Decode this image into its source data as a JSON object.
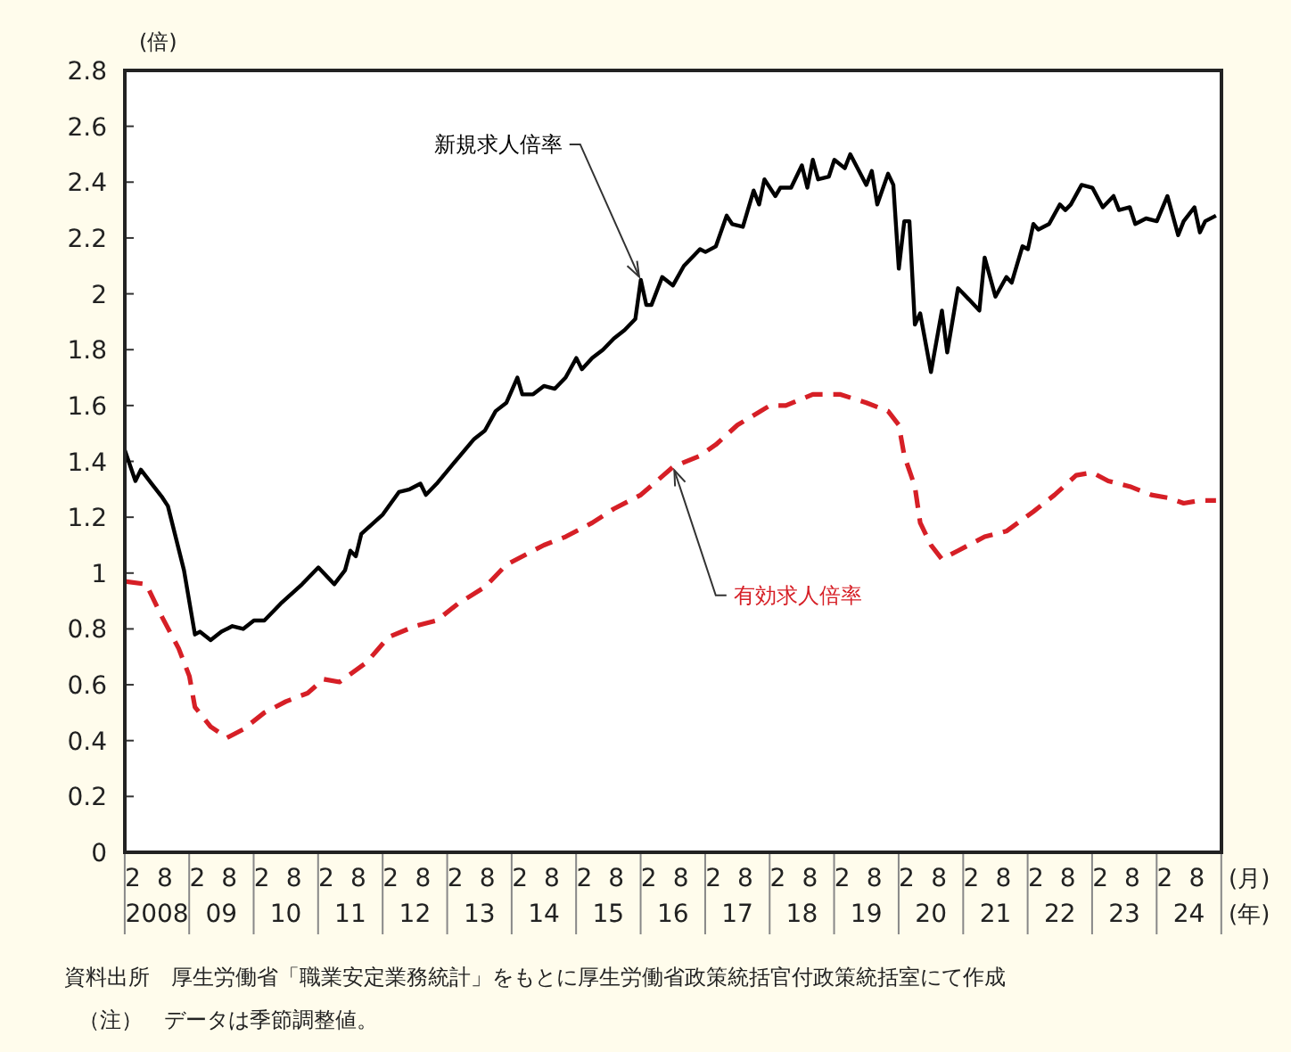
{
  "chart_data": {
    "type": "line",
    "ylabel": "(倍)",
    "xlabel": "(月)",
    "annotations": [
      "(年)",
      "資料出所　厚生労働省「職業安定業務統計」をもとに厚生労働省政策統括官付政策統括室にて作成",
      "（注）　データは季節調整値。"
    ],
    "xlim": [
      "2008-01",
      "2025-01"
    ],
    "xticks": [
      {
        "value": "2008-02-15",
        "label": "2"
      },
      {
        "value": "2008-08-15",
        "label": "8"
      },
      {
        "value": "2009-02-15",
        "label": "2"
      },
      {
        "value": "2009-08-15",
        "label": "8"
      },
      {
        "value": "2010-02-15",
        "label": "2"
      },
      {
        "value": "2010-08-15",
        "label": "8"
      },
      {
        "value": "2011-02-15",
        "label": "2"
      },
      {
        "value": "2011-08-15",
        "label": "8"
      },
      {
        "value": "2012-02-15",
        "label": "2"
      },
      {
        "value": "2012-08-15",
        "label": "8"
      },
      {
        "value": "2013-02-15",
        "label": "2"
      },
      {
        "value": "2013-08-15",
        "label": "8"
      },
      {
        "value": "2014-02-15",
        "label": "2"
      },
      {
        "value": "2014-08-15",
        "label": "8"
      },
      {
        "value": "2015-02-15",
        "label": "2"
      },
      {
        "value": "2015-08-15",
        "label": "8"
      },
      {
        "value": "2016-02-15",
        "label": "2"
      },
      {
        "value": "2016-08-15",
        "label": "8"
      },
      {
        "value": "2017-02-15",
        "label": "2"
      },
      {
        "value": "2017-08-15",
        "label": "8"
      },
      {
        "value": "2018-02-15",
        "label": "2"
      },
      {
        "value": "2018-08-15",
        "label": "8"
      },
      {
        "value": "2019-02-15",
        "label": "2"
      },
      {
        "value": "2019-08-15",
        "label": "8"
      },
      {
        "value": "2020-02-15",
        "label": "2"
      },
      {
        "value": "2020-08-15",
        "label": "8"
      },
      {
        "value": "2021-02-15",
        "label": "2"
      },
      {
        "value": "2021-08-15",
        "label": "8"
      },
      {
        "value": "2022-02-15",
        "label": "2"
      },
      {
        "value": "2022-08-15",
        "label": "8"
      },
      {
        "value": "2023-02-15",
        "label": "2"
      },
      {
        "value": "2023-08-15",
        "label": "8"
      },
      {
        "value": "2024-02-15",
        "label": "2"
      },
      {
        "value": "2024-08-15",
        "label": "8"
      }
    ],
    "x2lim": [
      "2008-01",
      "2025-01"
    ],
    "x2ticks": [
      {
        "value": "2008-07",
        "label": "2008"
      },
      {
        "value": "2009-07",
        "label": "09"
      },
      {
        "value": "2010-07",
        "label": "10"
      },
      {
        "value": "2011-07",
        "label": "11"
      },
      {
        "value": "2012-07",
        "label": "12"
      },
      {
        "value": "2013-07",
        "label": "13"
      },
      {
        "value": "2014-07",
        "label": "14"
      },
      {
        "value": "2015-07",
        "label": "15"
      },
      {
        "value": "2016-07",
        "label": "16"
      },
      {
        "value": "2017-07",
        "label": "17"
      },
      {
        "value": "2018-07",
        "label": "18"
      },
      {
        "value": "2019-07",
        "label": "19"
      },
      {
        "value": "2020-07",
        "label": "20"
      },
      {
        "value": "2021-07",
        "label": "21"
      },
      {
        "value": "2022-07",
        "label": "22"
      },
      {
        "value": "2023-07",
        "label": "23"
      },
      {
        "value": "2024-07",
        "label": "24"
      }
    ],
    "ylim": [
      0,
      2.8
    ],
    "yticks": [
      0,
      0.2,
      0.4,
      0.6,
      0.8,
      1,
      1.2,
      1.4,
      1.6,
      1.8,
      2,
      2.2,
      2.4,
      2.6,
      2.8
    ],
    "series": [
      {
        "name": "新規求人倍率",
        "color": "#000000",
        "line_style": "solid",
        "x": [
          "2008-01",
          "2008-03",
          "2008-04",
          "2008-06",
          "2008-08",
          "2008-09",
          "2008-12",
          "2009-02",
          "2009-03",
          "2009-05",
          "2009-07",
          "2009-09",
          "2009-11",
          "2010-01",
          "2010-03",
          "2010-06",
          "2010-10",
          "2011-01",
          "2011-04",
          "2011-06",
          "2011-07",
          "2011-08",
          "2011-09",
          "2012-01",
          "2012-04",
          "2012-06",
          "2012-08",
          "2012-09",
          "2012-11",
          "2013-02",
          "2013-06",
          "2013-08",
          "2013-10",
          "2013-12",
          "2014-02",
          "2014-03",
          "2014-05",
          "2014-07",
          "2014-09",
          "2014-11",
          "2015-01",
          "2015-02",
          "2015-04",
          "2015-06",
          "2015-08",
          "2015-10",
          "2015-12",
          "2016-01",
          "2016-02",
          "2016-03",
          "2016-05",
          "2016-07",
          "2016-09",
          "2016-11",
          "2016-12",
          "2017-01",
          "2017-03",
          "2017-05",
          "2017-06",
          "2017-08",
          "2017-10",
          "2017-11",
          "2017-12",
          "2018-02",
          "2018-03",
          "2018-05",
          "2018-07",
          "2018-08",
          "2018-09",
          "2018-10",
          "2018-12",
          "2019-01",
          "2019-03",
          "2019-04",
          "2019-07",
          "2019-08",
          "2019-09",
          "2019-11",
          "2019-12",
          "2020-01",
          "2020-02",
          "2020-03",
          "2020-04",
          "2020-05",
          "2020-07",
          "2020-09",
          "2020-10",
          "2020-12",
          "2021-01",
          "2021-02",
          "2021-04",
          "2021-05",
          "2021-07",
          "2021-09",
          "2021-10",
          "2021-12",
          "2022-01",
          "2022-02",
          "2022-03",
          "2022-05",
          "2022-07",
          "2022-08",
          "2022-09",
          "2022-11",
          "2023-01",
          "2023-03",
          "2023-05",
          "2023-06",
          "2023-08",
          "2023-09",
          "2023-11",
          "2024-01",
          "2024-03",
          "2024-05",
          "2024-06",
          "2024-08",
          "2024-09",
          "2024-10",
          "2024-12"
        ],
        "values": [
          1.44,
          1.33,
          1.37,
          1.32,
          1.27,
          1.24,
          1.01,
          0.78,
          0.79,
          0.76,
          0.79,
          0.81,
          0.8,
          0.83,
          0.83,
          0.89,
          0.96,
          1.02,
          0.96,
          1.01,
          1.08,
          1.06,
          1.14,
          1.21,
          1.29,
          1.3,
          1.32,
          1.28,
          1.32,
          1.39,
          1.48,
          1.51,
          1.58,
          1.61,
          1.7,
          1.64,
          1.64,
          1.67,
          1.66,
          1.7,
          1.77,
          1.73,
          1.77,
          1.8,
          1.84,
          1.87,
          1.91,
          2.05,
          1.96,
          1.96,
          2.06,
          2.03,
          2.1,
          2.14,
          2.16,
          2.15,
          2.17,
          2.28,
          2.25,
          2.24,
          2.37,
          2.32,
          2.41,
          2.35,
          2.38,
          2.38,
          2.46,
          2.38,
          2.48,
          2.41,
          2.42,
          2.48,
          2.45,
          2.5,
          2.39,
          2.44,
          2.32,
          2.43,
          2.39,
          2.09,
          2.26,
          2.26,
          1.89,
          1.93,
          1.72,
          1.94,
          1.79,
          2.02,
          2.0,
          1.98,
          1.94,
          2.13,
          1.99,
          2.06,
          2.04,
          2.17,
          2.16,
          2.25,
          2.23,
          2.25,
          2.32,
          2.3,
          2.32,
          2.39,
          2.38,
          2.31,
          2.35,
          2.3,
          2.31,
          2.25,
          2.27,
          2.26,
          2.35,
          2.21,
          2.26,
          2.31,
          2.22,
          2.26,
          2.28
        ]
      },
      {
        "name": "有効求人倍率",
        "color": "#d61f26",
        "line_style": "dashed",
        "x": [
          "2008-01",
          "2008-05",
          "2008-08",
          "2008-11",
          "2009-01",
          "2009-02",
          "2009-05",
          "2009-08",
          "2009-11",
          "2010-03",
          "2010-07",
          "2010-11",
          "2011-02",
          "2011-05",
          "2011-10",
          "2012-02",
          "2012-07",
          "2012-11",
          "2013-03",
          "2013-08",
          "2013-12",
          "2014-04",
          "2014-07",
          "2014-11",
          "2015-04",
          "2015-08",
          "2016-01",
          "2016-07",
          "2016-12",
          "2017-03",
          "2017-07",
          "2018-01",
          "2018-04",
          "2018-09",
          "2019-02",
          "2019-07",
          "2019-11",
          "2020-01",
          "2020-02",
          "2020-04",
          "2020-05",
          "2020-07",
          "2020-09",
          "2020-12",
          "2021-05",
          "2021-09",
          "2022-02",
          "2022-06",
          "2022-10",
          "2023-01",
          "2023-04",
          "2023-08",
          "2023-12",
          "2024-03",
          "2024-06",
          "2024-09",
          "2024-12"
        ],
        "values": [
          0.97,
          0.96,
          0.84,
          0.73,
          0.63,
          0.52,
          0.45,
          0.41,
          0.44,
          0.5,
          0.54,
          0.57,
          0.62,
          0.61,
          0.68,
          0.77,
          0.81,
          0.83,
          0.89,
          0.95,
          1.03,
          1.07,
          1.1,
          1.13,
          1.18,
          1.23,
          1.28,
          1.38,
          1.42,
          1.46,
          1.53,
          1.6,
          1.6,
          1.64,
          1.64,
          1.61,
          1.58,
          1.53,
          1.42,
          1.31,
          1.18,
          1.1,
          1.05,
          1.08,
          1.13,
          1.15,
          1.22,
          1.28,
          1.35,
          1.36,
          1.33,
          1.31,
          1.28,
          1.27,
          1.25,
          1.26,
          1.26
        ]
      }
    ]
  }
}
